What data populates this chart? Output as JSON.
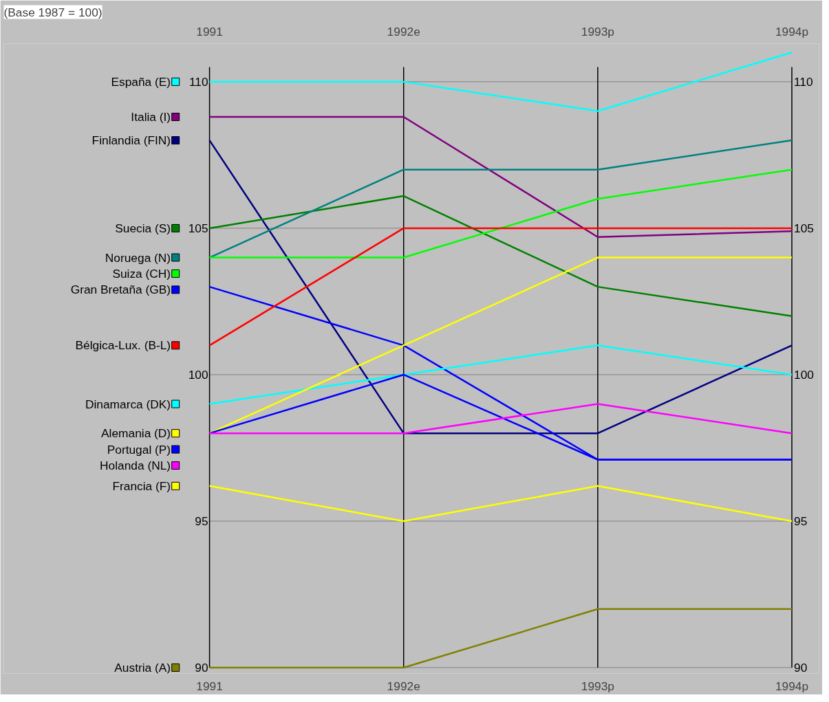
{
  "chart_data": {
    "type": "line",
    "title": "(Base 1987 = 100)",
    "categories": [
      "1991",
      "1992e",
      "1993p",
      "1994p"
    ],
    "ylim": [
      89.8,
      111.3
    ],
    "yticks": [
      90,
      95,
      100,
      105,
      110
    ],
    "y2lim": [
      89.8,
      111.3
    ],
    "y2ticks": [
      90,
      95,
      100,
      105,
      110
    ],
    "grid": true,
    "legend": "left",
    "marker": "none",
    "line_style": "solid",
    "series": [
      {
        "name": "España (E)",
        "color": "#00ffff",
        "values": [
          110,
          110,
          109.0,
          111.0
        ]
      },
      {
        "name": "Italia (I)",
        "color": "#800080",
        "values": [
          108.8,
          108.8,
          104.7,
          104.9
        ]
      },
      {
        "name": "Finlandia (FIN)",
        "color": "#000080",
        "values": [
          108.0,
          98.0,
          98.0,
          101.0
        ]
      },
      {
        "name": "Suecia (S)",
        "color": "#008000",
        "values": [
          105.0,
          106.1,
          103.0,
          102.0
        ]
      },
      {
        "name": "Noruega (N)",
        "color": "#008080",
        "values": [
          104.0,
          107.0,
          107.0,
          108.0
        ]
      },
      {
        "name": "Suiza (CH)",
        "color": "#00ff00",
        "values": [
          104.0,
          104.0,
          106.0,
          107.0
        ]
      },
      {
        "name": "Gran Bretaña (GB)",
        "color": "#0000ff",
        "values": [
          103.0,
          101.0,
          97.1,
          97.1
        ]
      },
      {
        "name": "Bélgica-Lux. (B-L)",
        "color": "#ff0000",
        "values": [
          101.0,
          105.0,
          105.0,
          105.0
        ]
      },
      {
        "name": "Dinamarca (DK)",
        "color": "#00ffff",
        "values": [
          99.0,
          100.0,
          101.0,
          100.0
        ]
      },
      {
        "name": "Alemania (D)",
        "color": "#ffff00",
        "values": [
          98.0,
          101.0,
          104.0,
          104.0
        ]
      },
      {
        "name": "Portugal (P)",
        "color": "#0000ff",
        "values": [
          98.0,
          100.0,
          97.1,
          97.1
        ]
      },
      {
        "name": "Holanda (NL)",
        "color": "#ff00ff",
        "values": [
          98.0,
          98.0,
          99.0,
          98.0
        ]
      },
      {
        "name": "Francia (F)",
        "color": "#ffff00",
        "values": [
          96.2,
          95.0,
          96.2,
          95.0
        ]
      },
      {
        "name": "Austria (A)",
        "color": "#808000",
        "values": [
          90.0,
          90.0,
          92.0,
          92.0
        ]
      }
    ]
  }
}
